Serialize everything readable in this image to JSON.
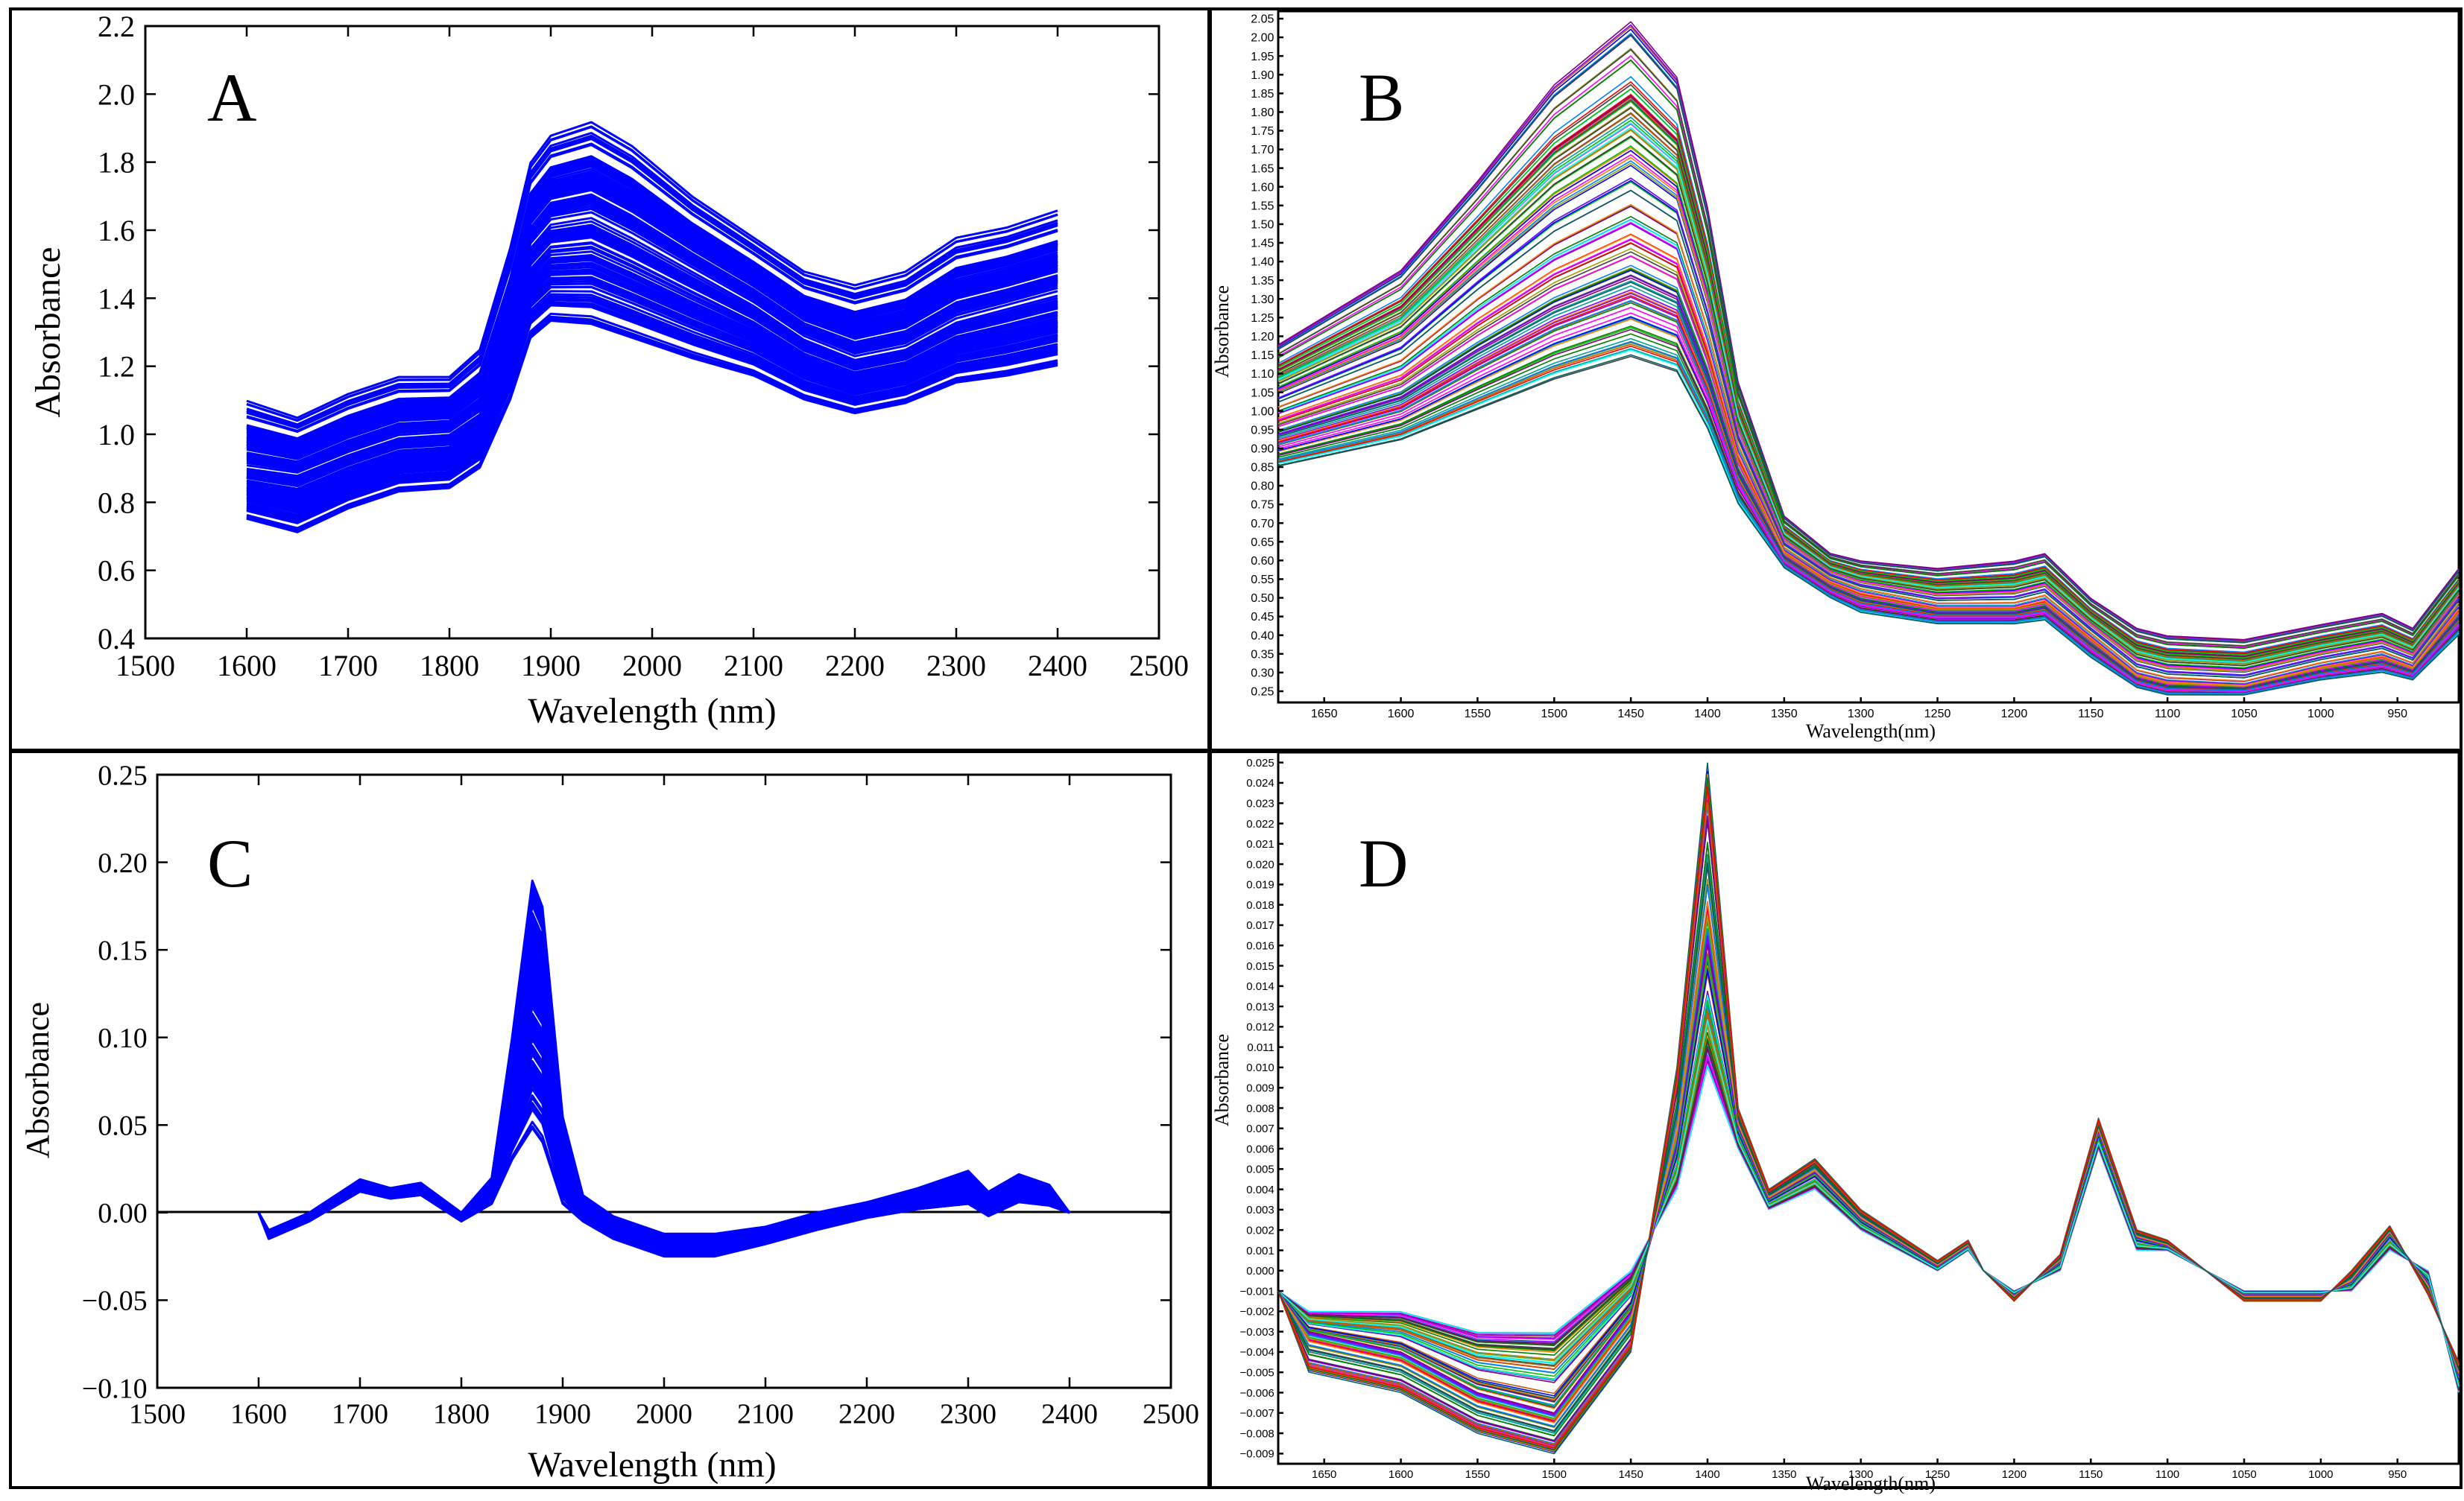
{
  "chart_data": [
    {
      "panel": "A",
      "type": "line",
      "xlabel": "Wavelength (nm)",
      "ylabel": "Absorbance",
      "xlim": [
        1500,
        2500
      ],
      "ylim": [
        0.4,
        2.2
      ],
      "xticks": [
        "1500",
        "1600",
        "1700",
        "1800",
        "1900",
        "2000",
        "2100",
        "2200",
        "2300",
        "2400",
        "2500"
      ],
      "yticks": [
        "0.4",
        "0.6",
        "0.8",
        "1.0",
        "1.2",
        "1.4",
        "1.6",
        "1.8",
        "2.0",
        "2.2"
      ],
      "line_color": "#0000ff",
      "spectra_count": 120,
      "x": [
        1600,
        1650,
        1700,
        1750,
        1800,
        1830,
        1860,
        1880,
        1900,
        1940,
        1980,
        2040,
        2100,
        2150,
        2200,
        2250,
        2300,
        2350,
        2400
      ],
      "series": [
        {
          "values": [
            0.75,
            0.71,
            0.78,
            0.83,
            0.84,
            0.9,
            1.1,
            1.28,
            1.33,
            1.32,
            1.28,
            1.22,
            1.17,
            1.1,
            1.06,
            1.09,
            1.15,
            1.17,
            1.2
          ]
        },
        {
          "values": [
            0.9,
            0.88,
            0.94,
            0.99,
            1.0,
            1.06,
            1.3,
            1.55,
            1.62,
            1.64,
            1.58,
            1.48,
            1.38,
            1.28,
            1.22,
            1.25,
            1.33,
            1.37,
            1.41
          ]
        },
        {
          "values": [
            1.1,
            1.05,
            1.12,
            1.17,
            1.17,
            1.25,
            1.55,
            1.8,
            1.88,
            1.92,
            1.85,
            1.7,
            1.58,
            1.48,
            1.44,
            1.48,
            1.58,
            1.61,
            1.66
          ]
        }
      ]
    },
    {
      "panel": "B",
      "type": "line",
      "xlabel": "Wavelength(nm)",
      "ylabel": "Absorbance",
      "xlim": [
        1680,
        910
      ],
      "ylim": [
        0.22,
        2.07
      ],
      "xticks": [
        "1650",
        "1600",
        "1550",
        "1500",
        "1450",
        "1400",
        "1350",
        "1300",
        "1250",
        "1200",
        "1150",
        "1100",
        "1050",
        "1000",
        "950"
      ],
      "yticks": [
        "0.25",
        "0.30",
        "0.35",
        "0.40",
        "0.45",
        "0.50",
        "0.55",
        "0.60",
        "0.65",
        "0.70",
        "0.75",
        "0.80",
        "0.85",
        "0.90",
        "0.95",
        "1.00",
        "1.05",
        "1.10",
        "1.15",
        "1.20",
        "1.25",
        "1.30",
        "1.35",
        "1.40",
        "1.45",
        "1.50",
        "1.55",
        "1.60",
        "1.65",
        "1.70",
        "1.75",
        "1.80",
        "1.85",
        "1.90",
        "1.95",
        "2.00",
        "2.05"
      ],
      "spectra_count": 120,
      "x": [
        1680,
        1600,
        1550,
        1500,
        1450,
        1420,
        1400,
        1380,
        1350,
        1320,
        1300,
        1250,
        1200,
        1180,
        1150,
        1120,
        1100,
        1050,
        1000,
        960,
        940,
        910
      ],
      "series": [
        {
          "values": [
            0.85,
            0.92,
            1.0,
            1.08,
            1.14,
            1.1,
            0.95,
            0.75,
            0.58,
            0.5,
            0.46,
            0.43,
            0.43,
            0.44,
            0.34,
            0.26,
            0.24,
            0.24,
            0.28,
            0.3,
            0.28,
            0.4
          ]
        },
        {
          "values": [
            1.0,
            1.12,
            1.28,
            1.42,
            1.52,
            1.45,
            1.2,
            0.9,
            0.63,
            0.55,
            0.52,
            0.48,
            0.48,
            0.5,
            0.4,
            0.3,
            0.28,
            0.27,
            0.32,
            0.35,
            0.32,
            0.48
          ]
        },
        {
          "values": [
            1.18,
            1.38,
            1.62,
            1.88,
            2.05,
            1.9,
            1.55,
            1.08,
            0.72,
            0.62,
            0.6,
            0.58,
            0.6,
            0.62,
            0.5,
            0.42,
            0.4,
            0.39,
            0.43,
            0.46,
            0.42,
            0.58
          ]
        }
      ]
    },
    {
      "panel": "C",
      "type": "line",
      "xlabel": "Wavelength (nm)",
      "ylabel": "Absorbance",
      "xlim": [
        1500,
        2500
      ],
      "ylim": [
        -0.1,
        0.25
      ],
      "xticks": [
        "1500",
        "1600",
        "1700",
        "1800",
        "1900",
        "2000",
        "2100",
        "2200",
        "2300",
        "2400",
        "2500"
      ],
      "yticks": [
        "−0.10",
        "−0.05",
        "0.00",
        "0.05",
        "0.10",
        "0.15",
        "0.20",
        "0.25"
      ],
      "baseline": 0.0,
      "line_color": "#0000ff",
      "spectra_count": 120,
      "x": [
        1600,
        1610,
        1650,
        1700,
        1730,
        1760,
        1800,
        1830,
        1850,
        1870,
        1880,
        1900,
        1920,
        1950,
        2000,
        2050,
        2100,
        2150,
        2200,
        2250,
        2300,
        2320,
        2350,
        2380,
        2400
      ],
      "series": [
        {
          "values": [
            0.0,
            -0.015,
            -0.005,
            0.012,
            0.008,
            0.01,
            -0.005,
            0.005,
            0.03,
            0.048,
            0.04,
            0.005,
            -0.005,
            -0.015,
            -0.025,
            -0.025,
            -0.018,
            -0.01,
            -0.003,
            0.002,
            0.005,
            -0.002,
            0.006,
            0.004,
            0.0
          ]
        },
        {
          "values": [
            0.0,
            -0.012,
            -0.002,
            0.016,
            0.012,
            0.014,
            -0.002,
            0.012,
            0.07,
            0.13,
            0.12,
            0.03,
            0.002,
            -0.01,
            -0.02,
            -0.02,
            -0.014,
            -0.006,
            0.0,
            0.006,
            0.012,
            0.004,
            0.012,
            0.008,
            0.0
          ]
        },
        {
          "values": [
            0.0,
            -0.01,
            0.0,
            0.019,
            0.014,
            0.017,
            0.0,
            0.02,
            0.1,
            0.19,
            0.175,
            0.055,
            0.01,
            -0.002,
            -0.012,
            -0.012,
            -0.008,
            0.0,
            0.006,
            0.014,
            0.024,
            0.012,
            0.022,
            0.016,
            0.0
          ]
        }
      ]
    },
    {
      "panel": "D",
      "type": "line",
      "xlabel": "Wavelength(nm)",
      "ylabel": "Absorbance",
      "xlim": [
        1680,
        910
      ],
      "ylim": [
        -0.0095,
        0.0255
      ],
      "xticks": [
        "1650",
        "1600",
        "1550",
        "1500",
        "1450",
        "1400",
        "1350",
        "1300",
        "1250",
        "1200",
        "1150",
        "1100",
        "1050",
        "1000",
        "950"
      ],
      "yticks": [
        "−0.009",
        "−0.008",
        "−0.007",
        "−0.006",
        "−0.005",
        "−0.004",
        "−0.003",
        "−0.002",
        "−0.001",
        "0.000",
        "0.001",
        "0.002",
        "0.003",
        "0.004",
        "0.005",
        "0.006",
        "0.007",
        "0.008",
        "0.009",
        "0.010",
        "0.011",
        "0.012",
        "0.013",
        "0.014",
        "0.015",
        "0.016",
        "0.017",
        "0.018",
        "0.019",
        "0.020",
        "0.021",
        "0.022",
        "0.023",
        "0.024",
        "0.025"
      ],
      "spectra_count": 120,
      "x": [
        1680,
        1660,
        1600,
        1550,
        1500,
        1450,
        1420,
        1400,
        1380,
        1360,
        1330,
        1300,
        1250,
        1230,
        1220,
        1200,
        1170,
        1145,
        1120,
        1100,
        1050,
        1000,
        980,
        955,
        930,
        910
      ],
      "series": [
        {
          "values": [
            -0.001,
            -0.002,
            -0.002,
            -0.003,
            -0.003,
            0.0,
            0.004,
            0.01,
            0.006,
            0.003,
            0.004,
            0.002,
            0.0,
            0.001,
            0.0,
            -0.001,
            0.0,
            0.006,
            0.001,
            0.001,
            -0.001,
            -0.001,
            -0.001,
            0.001,
            0.0,
            -0.006
          ]
        },
        {
          "values": [
            -0.001,
            -0.003,
            -0.004,
            -0.006,
            -0.007,
            -0.002,
            0.006,
            0.016,
            0.007,
            0.0035,
            0.0048,
            0.0025,
            0.0002,
            0.0012,
            0.0,
            -0.0012,
            0.0004,
            0.0068,
            0.0016,
            0.0012,
            -0.0012,
            -0.0012,
            -0.0006,
            0.0018,
            -0.0006,
            -0.0052
          ]
        },
        {
          "values": [
            -0.001,
            -0.005,
            -0.006,
            -0.008,
            -0.009,
            -0.004,
            0.01,
            0.025,
            0.008,
            0.004,
            0.0055,
            0.003,
            0.0005,
            0.0015,
            0.0,
            -0.0015,
            0.0008,
            0.0075,
            0.002,
            0.0015,
            -0.0015,
            -0.0015,
            0.0,
            0.0022,
            -0.0012,
            -0.0045
          ]
        }
      ]
    }
  ]
}
